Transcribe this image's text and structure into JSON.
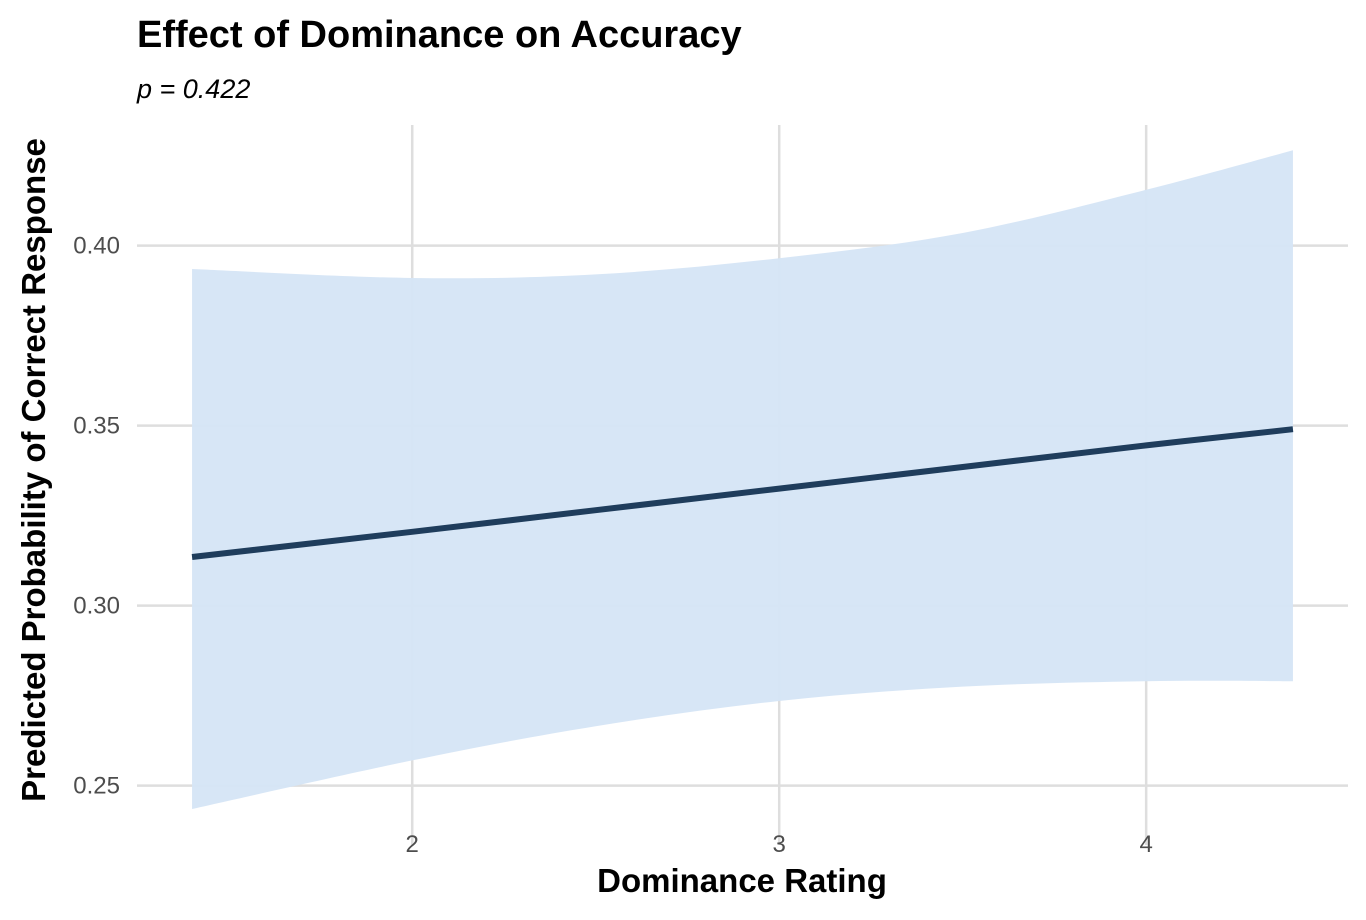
{
  "chart_data": {
    "type": "line",
    "title": "Effect of Dominance on Accuracy",
    "subtitle": "p = 0.422",
    "xlabel": "Dominance Rating",
    "ylabel": "Predicted Probability of Correct Response",
    "xlim": [
      1.25,
      4.55
    ],
    "ylim": [
      0.2335,
      0.4335
    ],
    "x_ticks": [
      2,
      3,
      4
    ],
    "y_ticks": [
      0.25,
      0.3,
      0.35,
      0.4
    ],
    "y_tick_labels": [
      "0.25",
      "0.30",
      "0.35",
      "0.40"
    ],
    "grid": true,
    "series": [
      {
        "x": [
          1.4,
          2.0,
          2.5,
          3.0,
          3.5,
          4.0,
          4.4
        ],
        "fit": [
          0.3135,
          0.3205,
          0.3265,
          0.3325,
          0.3385,
          0.3445,
          0.349
        ],
        "lower": [
          0.2435,
          0.257,
          0.2665,
          0.2735,
          0.2775,
          0.279,
          0.279
        ],
        "upper": [
          0.3935,
          0.391,
          0.392,
          0.3965,
          0.4035,
          0.4155,
          0.4265
        ]
      }
    ],
    "colors": {
      "line": "#1f3d5c",
      "band": "#d5e5f5",
      "grid": "#dedede",
      "tick_text": "#4d4d4d"
    }
  }
}
